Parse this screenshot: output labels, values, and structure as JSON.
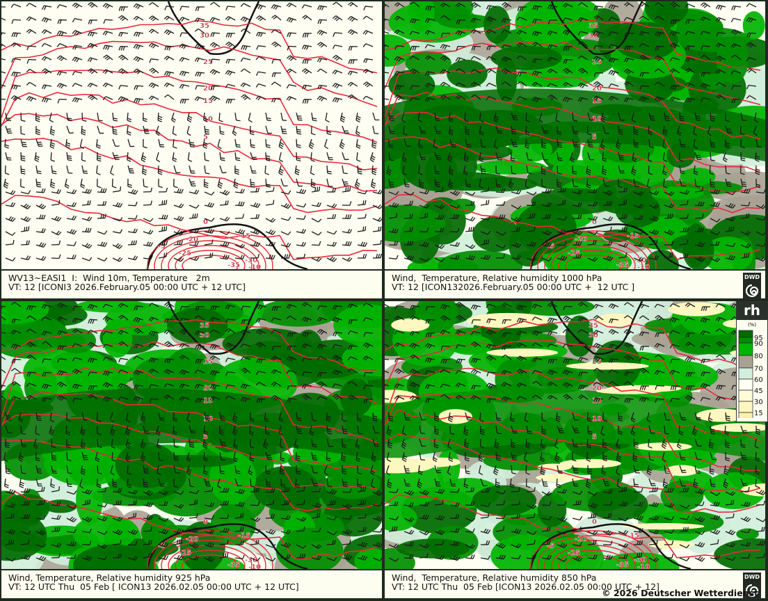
{
  "panels": [
    {
      "id": "tl",
      "line1": "WV13~EASI1  I:  Wind 10m, Temperature   2m",
      "line2": "VT: 12 [ICONI3 2026.February.05 00:00 UTC + 12 UTC]",
      "humidity": false,
      "logo": false
    },
    {
      "id": "tr",
      "line1": "Wind,  Temperature, Relative humidity 1000 hPa",
      "line2": "VT: 12 [ICON132026.February.05 00:00 UTC +  12 UTC ]",
      "humidity": true,
      "logo": true
    },
    {
      "id": "bl",
      "line1": "Wind, Temperature, Relative humidity 925 hPa",
      "line2": "VT: 12 UTC Thu  05 Feb [ ICON13 2026.02.05 00:00 UTC + 12 UTC]",
      "humidity": true,
      "logo": false
    },
    {
      "id": "br",
      "line1": "Wind,  Temperature, Relative humidity 850 hPa",
      "line2": "VT: 12 UTC Thu  05 Feb [ICON13 2026.02.05 00:00 UTC + 12]",
      "humidity": true,
      "logo": true
    }
  ],
  "logo_text": "DWD",
  "copyright": "© 2026 Deutscher Wetterdienst",
  "contour_labels": [
    "35",
    "30",
    "25",
    "20",
    "15",
    "10",
    "5",
    "0",
    "-5",
    "-10",
    "-15",
    "-20",
    "-25",
    "-30",
    "-35"
  ],
  "legend": {
    "title": "rh",
    "unit": "(%)",
    "ticks": [
      "95",
      "90",
      "80",
      "70",
      "60",
      "45",
      "30",
      "15"
    ],
    "colors": [
      "#006b00",
      "#008e00",
      "#00b400",
      "#a8a294",
      "#d2eedc",
      "#fffff2",
      "#fffbd8",
      "#fff7c0",
      "#fff0a8"
    ]
  },
  "colors": {
    "contour": "#e8283a",
    "barb": "#1a1a1a",
    "land_bg": "#fefef2",
    "frame": "#1e2a1e"
  }
}
